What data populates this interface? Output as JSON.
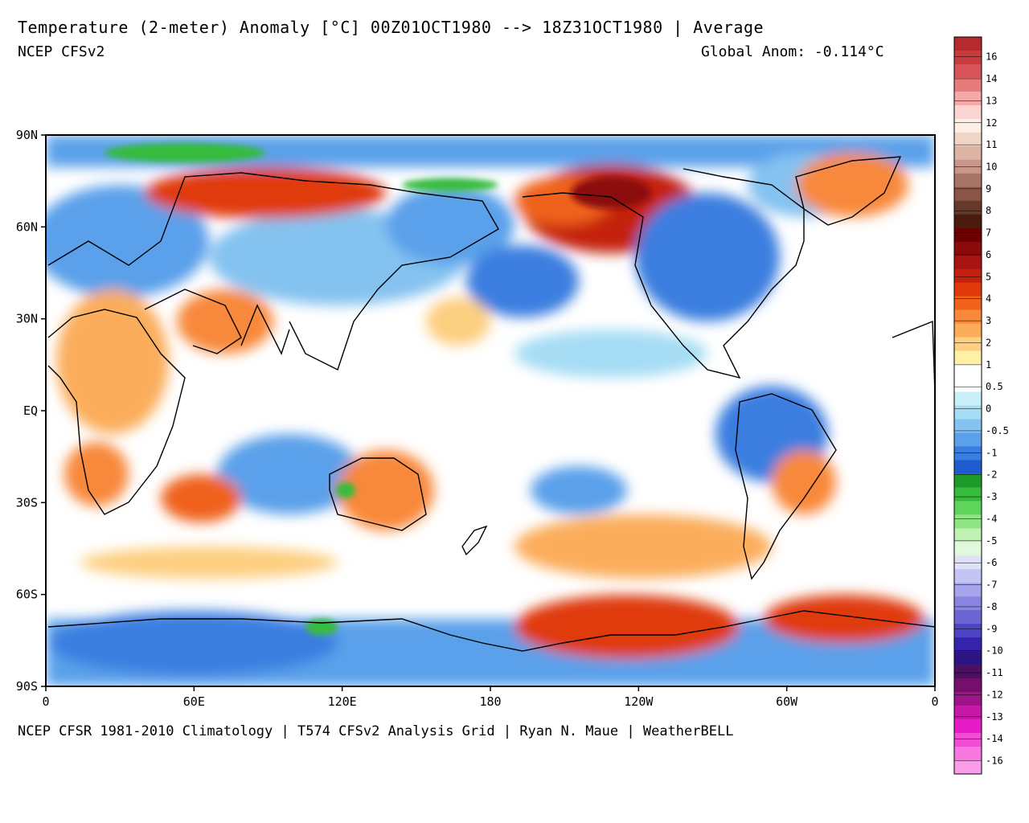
{
  "header": {
    "title": "Temperature (2-meter) Anomaly  [°C] 00Z01OCT1980 --> 18Z31OCT1980 | Average",
    "model": "NCEP CFSv2",
    "global_anomaly": "Global Anom: -0.114°C"
  },
  "footer": {
    "credits": "NCEP CFSR 1981-2010 Climatology | T574 CFSv2 Analysis Grid | Ryan N. Maue | WeatherBELL"
  },
  "map": {
    "lat_labels": [
      "90N",
      "60N",
      "30N",
      "EQ",
      "30S",
      "60S",
      "90S"
    ],
    "lon_labels": [
      "0",
      "60E",
      "120E",
      "180",
      "120W",
      "60W",
      "0"
    ]
  },
  "colorbar": {
    "labels": [
      "16",
      "14",
      "13",
      "12",
      "11",
      "10",
      "9",
      "8",
      "7",
      "6",
      "5",
      "4",
      "3",
      "2",
      "1",
      "0.5",
      "0",
      "-0.5",
      "-1",
      "-2",
      "-3",
      "-4",
      "-5",
      "-6",
      "-7",
      "-8",
      "-9",
      "-10",
      "-11",
      "-12",
      "-13",
      "-14",
      "-16"
    ],
    "colors": [
      "#b42a2e",
      "#c83a3c",
      "#d9545a",
      "#e87a7c",
      "#f4a8a8",
      "#fcd4d2",
      "#fdeee6",
      "#f0d4c6",
      "#ddb4a4",
      "#c8968a",
      "#a87466",
      "#8a5446",
      "#663828",
      "#4a1c10",
      "#6a0000",
      "#8c0a0a",
      "#a81414",
      "#c4200c",
      "#e03a0c",
      "#f0621a",
      "#f8883a",
      "#fbad5c",
      "#fdcf80",
      "#fff0a8",
      "#ffffff",
      "#ffffff",
      "#c8f0f8",
      "#a6ddf4",
      "#84c2f0",
      "#5aa0ea",
      "#3a7ee0",
      "#1e5cd0",
      "#1c9a2a",
      "#36bc3a",
      "#5ed45a",
      "#8ee484",
      "#bff0b4",
      "#e2f8dc",
      "#e0e0f8",
      "#c4c4f4",
      "#a8a4ec",
      "#8884e0",
      "#6a64d4",
      "#4c44c2",
      "#3424ac",
      "#2c1484",
      "#4c1060",
      "#74106c",
      "#9c1488",
      "#c818a8",
      "#e81cc6",
      "#f24cd6",
      "#f678e0",
      "#fa9cea"
    ]
  }
}
